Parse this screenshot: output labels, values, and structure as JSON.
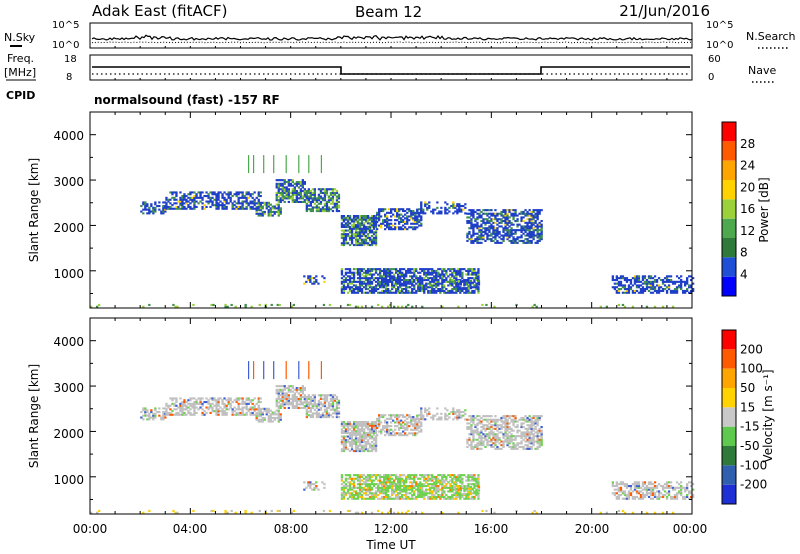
{
  "header": {
    "station": "Adak East (fitACF)",
    "beam": "Beam 12",
    "date": "21/Jun/2016"
  },
  "noise_panel": {
    "left_label": "N.Sky",
    "right_label": "N.Search",
    "left_ticks": [
      "10^5",
      "10^0"
    ],
    "right_ticks": [
      "10^5",
      "10^0"
    ]
  },
  "freq_panel": {
    "left_label_1": "Freq.",
    "left_label_2": "[MHz]",
    "right_label": "Nave",
    "left_ticks": [
      "18",
      "8"
    ],
    "right_ticks": [
      "60",
      "0"
    ],
    "cpid_label": "CPID",
    "mode_text": "normalsound (fast) -157 RF"
  },
  "chart_data": [
    {
      "type": "heatmap",
      "title": "",
      "ylabel": "Slant Range [km]",
      "ylim": [
        180,
        4500
      ],
      "yticks": [
        "1000",
        "2000",
        "3000",
        "4000"
      ],
      "colorbar": {
        "label": "Power [dB]",
        "ticks": [
          "28",
          "24",
          "20",
          "16",
          "12",
          "8",
          "4"
        ],
        "colors": [
          "#0000ff",
          "#1f4fd6",
          "#2f7a3a",
          "#4ea84e",
          "#9bd13a",
          "#ffd200",
          "#ffa500",
          "#ff5a00",
          "#ff0000"
        ]
      }
    },
    {
      "type": "heatmap",
      "title": "",
      "ylabel": "Slant Range [km]",
      "ylim": [
        180,
        4500
      ],
      "yticks": [
        "1000",
        "2000",
        "3000",
        "4000"
      ],
      "xlabel": "Time UT",
      "xticks": [
        "00:00",
        "04:00",
        "08:00",
        "12:00",
        "16:00",
        "20:00",
        "00:00"
      ],
      "colorbar": {
        "label": "Velocity [m s⁻¹]",
        "ticks": [
          "200",
          "100",
          "50",
          "15",
          "-15",
          "-50",
          "-100",
          "-200"
        ],
        "colors": [
          "#1f2fd6",
          "#2f5fae",
          "#2f7a3a",
          "#5fc84f",
          "#c8c8c8",
          "#ffd200",
          "#ffa500",
          "#ff5a00",
          "#ff0000"
        ]
      }
    }
  ],
  "colors": {
    "power_low": "#1f3fc8",
    "power_mid": "#3f8f4f",
    "velocity_ground": "#c0c0c0",
    "velocity_positive": "#6fd24f"
  }
}
